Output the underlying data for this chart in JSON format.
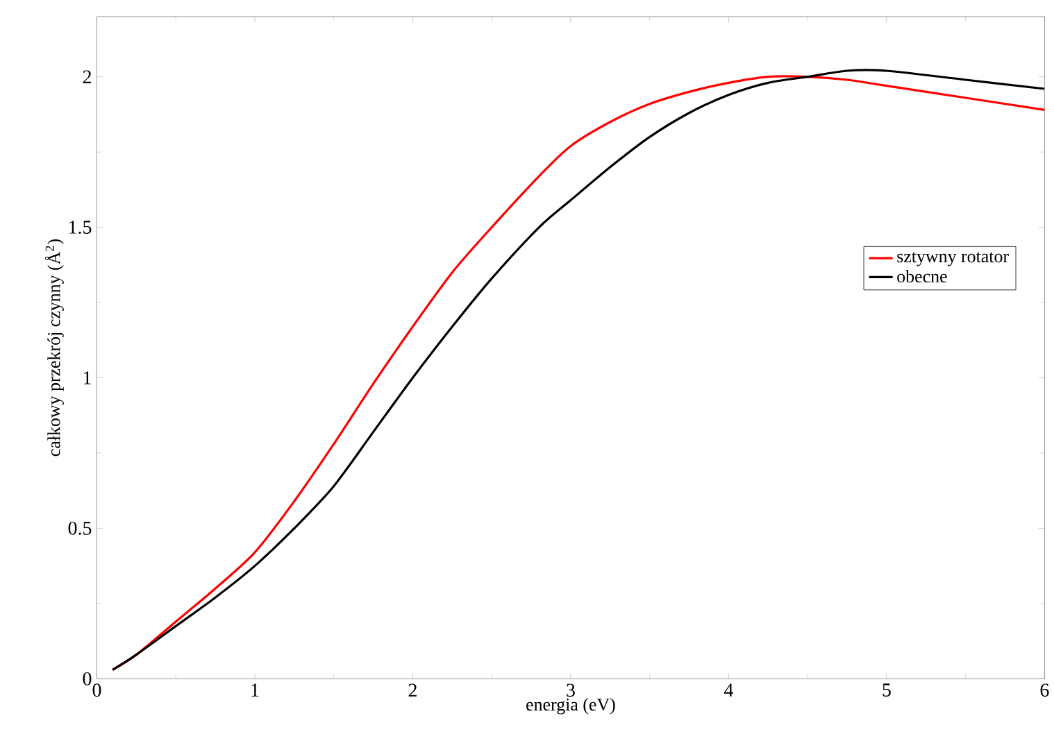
{
  "chart_data": {
    "type": "line",
    "xlabel": "energia (eV)",
    "ylabel": "całkowy przekrój czynny (Å$^{2}$)",
    "xlim": [
      0,
      6
    ],
    "ylim": [
      0,
      2.2
    ],
    "xticks": [
      0,
      1,
      2,
      3,
      4,
      5,
      6
    ],
    "yticks": [
      0,
      0.5,
      1,
      1.5,
      2
    ],
    "legend": "right",
    "grid": false,
    "marker": "none",
    "line_style": "solid",
    "series": [
      {
        "name": "sztywny rotator",
        "color": "#ff0000",
        "x": [
          0.1,
          0.25,
          0.5,
          0.75,
          1,
          1.25,
          1.5,
          1.75,
          2,
          2.25,
          2.5,
          2.8,
          3,
          3.25,
          3.5,
          3.75,
          4,
          4.25,
          4.5,
          4.75,
          5,
          5.5,
          6
        ],
        "values": [
          0.03,
          0.08,
          0.19,
          0.3,
          0.42,
          0.59,
          0.78,
          0.98,
          1.17,
          1.35,
          1.5,
          1.67,
          1.77,
          1.85,
          1.91,
          1.95,
          1.98,
          2.0,
          2.0,
          1.99,
          1.97,
          1.93,
          1.89
        ]
      },
      {
        "name": "obecne",
        "color": "#000000",
        "x": [
          0.1,
          0.25,
          0.5,
          0.75,
          1,
          1.25,
          1.5,
          1.75,
          2,
          2.25,
          2.5,
          2.8,
          3,
          3.25,
          3.5,
          3.75,
          4,
          4.25,
          4.5,
          4.75,
          5,
          5.5,
          6
        ],
        "values": [
          0.03,
          0.08,
          0.175,
          0.27,
          0.375,
          0.5,
          0.64,
          0.82,
          1.0,
          1.17,
          1.33,
          1.5,
          1.59,
          1.7,
          1.8,
          1.88,
          1.94,
          1.98,
          2.0,
          2.02,
          2.02,
          1.99,
          1.96
        ]
      }
    ]
  }
}
